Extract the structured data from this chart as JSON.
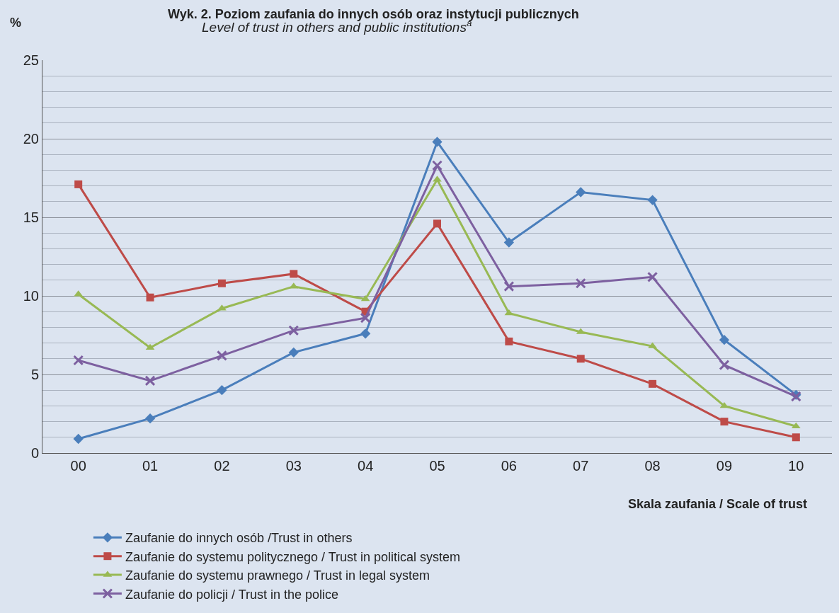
{
  "chart_data": {
    "type": "line",
    "title": "Wyk. 2. Poziom zaufania do innych osób oraz instytucji publicznych",
    "subtitle": "Level of trust in others and public institutions$^{a}$",
    "ylabel": "%",
    "xlabel": "Skala zaufania / Scale of trust",
    "categories": [
      "00",
      "01",
      "02",
      "03",
      "04",
      "05",
      "06",
      "07",
      "08",
      "09",
      "10"
    ],
    "series": [
      {
        "name": "Zaufanie do innych osób /Trust in others",
        "color": "#4a7ebb",
        "marker": "diamond",
        "values": [
          0.9,
          2.2,
          4.0,
          6.4,
          7.6,
          19.8,
          13.4,
          16.6,
          16.1,
          7.2,
          3.7
        ]
      },
      {
        "name": "Zaufanie do systemu politycznego / Trust in political system",
        "color": "#be4b48",
        "marker": "square",
        "values": [
          17.1,
          9.9,
          10.8,
          11.4,
          9.0,
          14.6,
          7.1,
          6.0,
          4.4,
          2.0,
          1.0
        ]
      },
      {
        "name": "Zaufanie do systemu prawnego / Trust in legal system",
        "color": "#98b954",
        "marker": "triangle",
        "values": [
          10.1,
          6.7,
          9.2,
          10.6,
          9.8,
          17.4,
          8.9,
          7.7,
          6.8,
          3.0,
          1.7
        ]
      },
      {
        "name": "Zaufanie do policji / Trust in the police",
        "color": "#7d60a0",
        "marker": "cross",
        "values": [
          5.9,
          4.6,
          6.2,
          7.8,
          8.6,
          18.3,
          10.6,
          10.8,
          11.2,
          5.6,
          3.6
        ]
      }
    ],
    "ylim": [
      0,
      25
    ],
    "yticks": [
      0,
      5,
      10,
      15,
      20,
      25
    ],
    "grid": "y",
    "legend": "bottom left",
    "line_style": "solid"
  }
}
